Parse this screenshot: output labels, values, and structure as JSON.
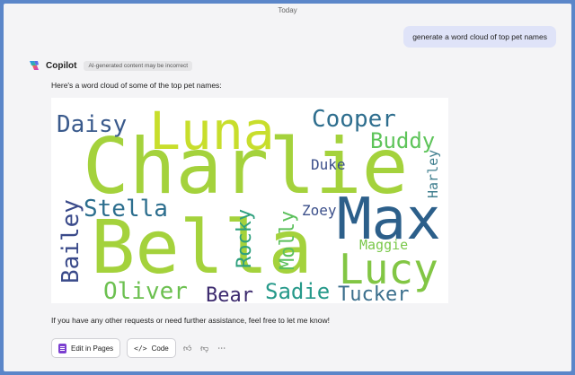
{
  "chat": {
    "day_label": "Today",
    "user_message": "generate a word cloud of top pet names",
    "bot_name": "Copilot",
    "ai_badge": "AI-generated content may be incorrect",
    "intro": "Here's a word cloud of some of the top pet names:",
    "footer": "If you have any other requests or need further assistance, feel free to let me know!",
    "actions": {
      "edit_pages": "Edit in Pages",
      "code": "Code"
    }
  },
  "wordcloud": {
    "words": [
      {
        "text": "Charlie",
        "color": "#a4d23c"
      },
      {
        "text": "Bella",
        "color": "#a4d23c"
      },
      {
        "text": "Luna",
        "color": "#c8de2c"
      },
      {
        "text": "Max",
        "color": "#2c5f8a"
      },
      {
        "text": "Lucy",
        "color": "#82c644"
      },
      {
        "text": "Daisy",
        "color": "#3a5a8c"
      },
      {
        "text": "Cooper",
        "color": "#2e6e8e"
      },
      {
        "text": "Buddy",
        "color": "#5ec45a"
      },
      {
        "text": "Duke",
        "color": "#3b4f8a"
      },
      {
        "text": "Harley",
        "color": "#3f7e8e"
      },
      {
        "text": "Stella",
        "color": "#2c6e8e"
      },
      {
        "text": "Bailey",
        "color": "#3a4a8a"
      },
      {
        "text": "Rocky",
        "color": "#2ea07e"
      },
      {
        "text": "Molly",
        "color": "#5cc05c"
      },
      {
        "text": "Zoey",
        "color": "#3b4f8a"
      },
      {
        "text": "Maggie",
        "color": "#7ac84a"
      },
      {
        "text": "Oliver",
        "color": "#6cc050"
      },
      {
        "text": "Bear",
        "color": "#3c2a6e"
      },
      {
        "text": "Sadie",
        "color": "#26998a"
      },
      {
        "text": "Tucker",
        "color": "#3a6e8c"
      }
    ]
  }
}
